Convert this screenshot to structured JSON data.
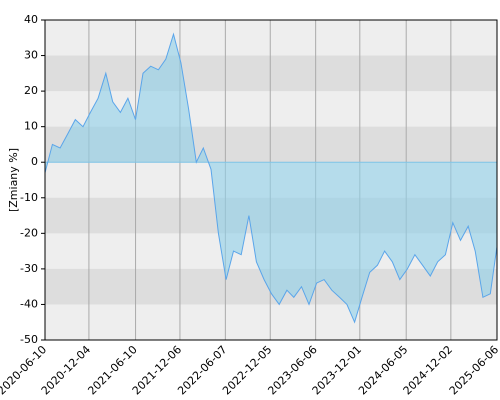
{
  "chart_data": {
    "type": "area",
    "y_label": "[Zmiany %]",
    "x": [
      "2020-06-10",
      "2020-07-10",
      "2020-08-10",
      "2020-09-10",
      "2020-10-10",
      "2020-11-10",
      "2020-12-10",
      "2021-01-10",
      "2021-02-10",
      "2021-03-10",
      "2021-04-10",
      "2021-05-10",
      "2021-06-10",
      "2021-07-10",
      "2021-08-10",
      "2021-09-10",
      "2021-10-10",
      "2021-11-10",
      "2021-12-10",
      "2022-01-10",
      "2022-02-10",
      "2022-03-10",
      "2022-04-10",
      "2022-05-10",
      "2022-06-10",
      "2022-07-10",
      "2022-08-10",
      "2022-09-10",
      "2022-10-10",
      "2022-11-10",
      "2022-12-10",
      "2023-01-10",
      "2023-02-10",
      "2023-03-10",
      "2023-04-10",
      "2023-05-10",
      "2023-06-10",
      "2023-07-10",
      "2023-08-10",
      "2023-09-10",
      "2023-10-10",
      "2023-11-10",
      "2023-12-10",
      "2024-01-10",
      "2024-02-10",
      "2024-03-10",
      "2024-04-10",
      "2024-05-10",
      "2024-06-10",
      "2024-07-10",
      "2024-08-10",
      "2024-09-10",
      "2024-10-10",
      "2024-11-10",
      "2024-12-10",
      "2025-01-10",
      "2025-02-10",
      "2025-03-10",
      "2025-04-10",
      "2025-05-10",
      "2025-06-05"
    ],
    "values": [
      -3,
      5,
      4,
      8,
      12,
      10,
      14,
      18,
      25,
      17,
      14,
      18,
      12,
      25,
      27,
      26,
      29,
      36,
      28,
      15,
      0,
      4,
      -2,
      -20,
      -33,
      -25,
      -26,
      -15,
      -28,
      -33,
      -37,
      -40,
      -36,
      -38,
      -35,
      -40,
      -34,
      -33,
      -36,
      -38,
      -40,
      -45,
      -38,
      -31,
      -29,
      -25,
      -28,
      -33,
      -30,
      -26,
      -29,
      -32,
      -28,
      -26,
      -17,
      -22,
      -18,
      -25,
      -38,
      -37,
      -24
    ],
    "color": "#5aa5ea",
    "xlim": [
      "2020-06-10",
      "2025-06-06"
    ],
    "xticks": [
      "2020-06-10",
      "2020-12-04",
      "2021-06-10",
      "2021-12-06",
      "2022-06-07",
      "2022-12-05",
      "2023-06-06",
      "2023-12-01",
      "2024-06-05",
      "2024-12-02",
      "2025-06-06"
    ],
    "ylim": [
      -50,
      40
    ],
    "yticks": [
      -50,
      -40,
      -30,
      -20,
      -10,
      0,
      10,
      20,
      30,
      40
    ],
    "grid": true
  }
}
